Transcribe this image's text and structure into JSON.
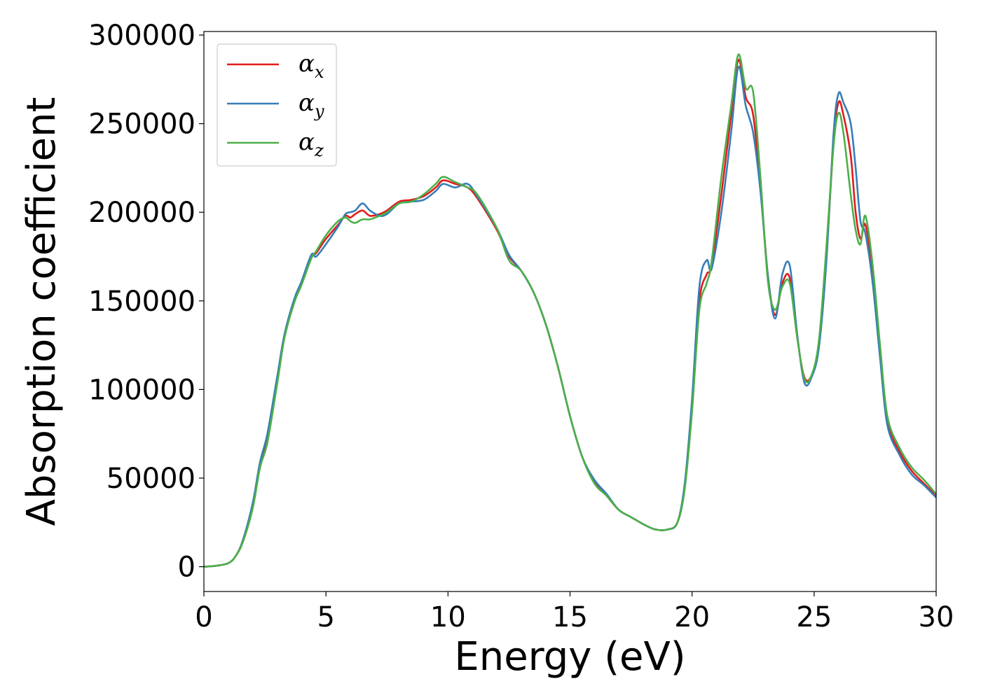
{
  "chart_data": {
    "type": "line",
    "title": "",
    "xlabel": "Energy (eV)",
    "ylabel": "Absorption coefficient",
    "xlim": [
      0,
      30
    ],
    "ylim": [
      -14000,
      302000
    ],
    "xticks": [
      0,
      5,
      10,
      15,
      20,
      25,
      30
    ],
    "yticks": [
      0,
      50000,
      100000,
      150000,
      200000,
      250000,
      300000
    ],
    "xtick_labels": [
      "0",
      "5",
      "10",
      "15",
      "20",
      "25",
      "30"
    ],
    "ytick_labels": [
      "0",
      "50000",
      "100000",
      "150000",
      "200000",
      "250000",
      "300000"
    ],
    "grid": false,
    "legend_position": "top-left",
    "colors": {
      "alpha_x": "#e41a1c",
      "alpha_y": "#377eb8",
      "alpha_z": "#4daf4a"
    },
    "legend": [
      {
        "base": "α",
        "sub": "x",
        "color": "#e41a1c"
      },
      {
        "base": "α",
        "sub": "y",
        "color": "#377eb8"
      },
      {
        "base": "α",
        "sub": "z",
        "color": "#4daf4a"
      }
    ],
    "series": [
      {
        "name": "αx",
        "color": "#e41a1c",
        "x": [
          0,
          0.5,
          1,
          1.3,
          1.6,
          2,
          2.3,
          2.6,
          3,
          3.3,
          3.7,
          4,
          4.4,
          4.6,
          5,
          5.5,
          5.8,
          6,
          6.2,
          6.5,
          6.8,
          7.2,
          7.5,
          8,
          8.5,
          9,
          9.5,
          9.8,
          10.3,
          10.8,
          11.2,
          12,
          12.5,
          13,
          13.5,
          14,
          14.5,
          15,
          15.5,
          16,
          16.5,
          17,
          17.5,
          18,
          18.5,
          19,
          19.4,
          19.7,
          20,
          20.3,
          20.6,
          20.8,
          21.2,
          21.6,
          21.9,
          22.2,
          22.5,
          22.8,
          23.1,
          23.4,
          23.7,
          24,
          24.3,
          24.6,
          24.9,
          25.2,
          25.5,
          25.8,
          26,
          26.2,
          26.5,
          26.7,
          26.9,
          27.1,
          27.4,
          27.7,
          28,
          28.5,
          29,
          29.5,
          30
        ],
        "y": [
          0,
          500,
          2000,
          6000,
          15000,
          35000,
          58000,
          73000,
          105000,
          130000,
          150000,
          160000,
          175000,
          177000,
          185000,
          193000,
          198000,
          197000,
          199000,
          201000,
          198000,
          199000,
          201000,
          206000,
          207000,
          209000,
          214000,
          218000,
          216000,
          214000,
          208000,
          190000,
          175000,
          167000,
          155000,
          137000,
          113000,
          85000,
          62000,
          48000,
          40000,
          32000,
          28000,
          24000,
          21000,
          21000,
          25000,
          45000,
          90000,
          150000,
          165000,
          170000,
          210000,
          255000,
          286000,
          265000,
          255000,
          215000,
          165000,
          142000,
          160000,
          163000,
          130000,
          107000,
          108000,
          125000,
          175000,
          240000,
          262000,
          255000,
          232000,
          200000,
          185000,
          193000,
          165000,
          120000,
          82000,
          65000,
          54000,
          47000,
          40000
        ]
      },
      {
        "name": "αy",
        "color": "#377eb8",
        "x": [
          0,
          0.5,
          1,
          1.3,
          1.6,
          2,
          2.3,
          2.6,
          3,
          3.3,
          3.7,
          4,
          4.4,
          4.6,
          5,
          5.5,
          5.8,
          6,
          6.2,
          6.5,
          6.8,
          7.2,
          7.5,
          8,
          8.5,
          9,
          9.5,
          9.8,
          10.3,
          10.8,
          11.2,
          12,
          12.5,
          13,
          13.5,
          14,
          14.5,
          15,
          15.5,
          16,
          16.5,
          17,
          17.5,
          18,
          18.5,
          19,
          19.4,
          19.7,
          20,
          20.3,
          20.6,
          20.8,
          21.2,
          21.6,
          21.9,
          22.2,
          22.5,
          22.8,
          23.1,
          23.4,
          23.7,
          24,
          24.3,
          24.6,
          24.9,
          25.2,
          25.5,
          25.8,
          26,
          26.2,
          26.5,
          26.7,
          26.9,
          27.1,
          27.4,
          27.7,
          28,
          28.5,
          29,
          29.5,
          30
        ],
        "y": [
          0,
          500,
          2000,
          6000,
          15000,
          36000,
          59000,
          75000,
          107000,
          131000,
          151000,
          161000,
          176000,
          175000,
          182000,
          192000,
          199000,
          200000,
          201000,
          205000,
          201000,
          198000,
          199000,
          205000,
          206000,
          207000,
          212000,
          216000,
          214000,
          216000,
          209000,
          191000,
          176000,
          167000,
          155000,
          137000,
          113000,
          85000,
          62000,
          49000,
          41000,
          32000,
          28000,
          24000,
          21000,
          21000,
          25000,
          47000,
          95000,
          158000,
          173000,
          168000,
          200000,
          245000,
          282000,
          260000,
          245000,
          212000,
          165000,
          140000,
          165000,
          170000,
          132000,
          104000,
          107000,
          124000,
          172000,
          245000,
          267000,
          262000,
          250000,
          225000,
          195000,
          188000,
          160000,
          118000,
          80000,
          63000,
          52000,
          46000,
          39000
        ]
      },
      {
        "name": "αz",
        "color": "#4daf4a",
        "x": [
          0,
          0.5,
          1,
          1.3,
          1.6,
          2,
          2.3,
          2.6,
          3,
          3.3,
          3.7,
          4,
          4.4,
          4.6,
          5,
          5.5,
          5.8,
          6,
          6.2,
          6.5,
          6.8,
          7.2,
          7.5,
          8,
          8.5,
          9,
          9.5,
          9.8,
          10.3,
          10.8,
          11.2,
          12,
          12.5,
          13,
          13.5,
          14,
          14.5,
          15,
          15.5,
          16,
          16.5,
          17,
          17.5,
          18,
          18.5,
          19,
          19.4,
          19.7,
          20,
          20.3,
          20.6,
          20.8,
          21.2,
          21.6,
          21.9,
          22.2,
          22.5,
          22.8,
          23.1,
          23.4,
          23.7,
          24,
          24.3,
          24.6,
          24.9,
          25.2,
          25.5,
          25.8,
          26,
          26.2,
          26.5,
          26.7,
          26.9,
          27.1,
          27.4,
          27.7,
          28,
          28.5,
          29,
          29.5,
          30
        ],
        "y": [
          0,
          500,
          2000,
          6000,
          14000,
          33000,
          56000,
          70000,
          103000,
          129000,
          149000,
          159000,
          174000,
          178000,
          187000,
          195000,
          197000,
          195000,
          194000,
          196000,
          196000,
          198000,
          200000,
          205000,
          206000,
          210000,
          216000,
          220000,
          217000,
          214000,
          210000,
          191000,
          173000,
          167000,
          155000,
          137000,
          113000,
          85000,
          62000,
          47000,
          40000,
          32000,
          28000,
          24000,
          21000,
          21000,
          25000,
          44000,
          88000,
          145000,
          160000,
          172000,
          220000,
          260000,
          289000,
          270000,
          268000,
          220000,
          162000,
          145000,
          158000,
          160000,
          130000,
          106000,
          108000,
          128000,
          180000,
          238000,
          256000,
          245000,
          210000,
          190000,
          182000,
          198000,
          170000,
          125000,
          85000,
          67000,
          56000,
          49000,
          41000
        ]
      }
    ]
  }
}
